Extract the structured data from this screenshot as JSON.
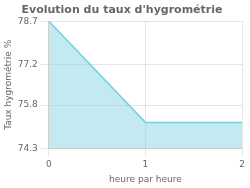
{
  "chart_data": {
    "type": "area",
    "title": "Evolution du taux d'hygrométrie",
    "xlabel": "heure par heure",
    "ylabel": "Taux hygrométrie %",
    "x": [
      0,
      1,
      2
    ],
    "values": [
      78.7,
      75.2,
      75.2
    ],
    "color": "#7acfe0",
    "xlim": [
      0,
      2
    ],
    "ylim": [
      74.3,
      78.7
    ],
    "xticks": [
      0,
      1,
      2
    ],
    "yticks": [
      74.3,
      75.8,
      77.2,
      78.7
    ],
    "grid": true
  }
}
